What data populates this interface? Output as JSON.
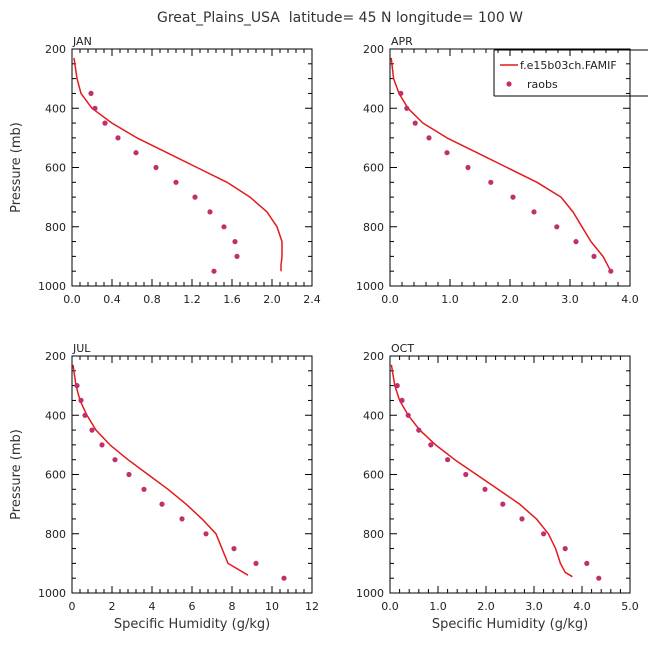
{
  "figure": {
    "title": "Great_Plains_USA  latitude= 45 N longitude= 100 W"
  },
  "colors": {
    "model_line": "#e31a1c",
    "obs_marker": "#c0306a",
    "axis": "#000000"
  },
  "legend": {
    "placement": "top-right of APR panel",
    "entries": [
      {
        "label": "f.e15b03ch.FAMIF",
        "style": "line"
      },
      {
        "label": "raobs",
        "style": "marker"
      }
    ]
  },
  "chart_data": [
    {
      "type": "line",
      "panel": "JAN",
      "xlabel": "",
      "ylabel": "Pressure (mb)",
      "xlim": [
        0,
        2.4
      ],
      "ylim": [
        1000,
        200
      ],
      "xticks": [
        "0.0",
        "0.4",
        "0.8",
        "1.2",
        "1.6",
        "2.0",
        "2.4"
      ],
      "yticks": [
        "200",
        "400",
        "600",
        "800",
        "1000"
      ],
      "series": [
        {
          "name": "f.e15b03ch.FAMIF",
          "kind": "line",
          "x": [
            0.02,
            0.05,
            0.09,
            0.2,
            0.4,
            0.65,
            0.95,
            1.25,
            1.55,
            1.78,
            1.95,
            2.05,
            2.1,
            2.1,
            2.09,
            2.09
          ],
          "y": [
            230,
            300,
            350,
            400,
            450,
            500,
            550,
            600,
            650,
            700,
            750,
            800,
            850,
            900,
            930,
            950
          ]
        },
        {
          "name": "raobs",
          "kind": "scatter",
          "x": [
            0.19,
            0.23,
            0.33,
            0.46,
            0.64,
            0.84,
            1.04,
            1.23,
            1.38,
            1.52,
            1.63,
            1.65,
            1.42
          ],
          "y": [
            350,
            400,
            450,
            500,
            550,
            600,
            650,
            700,
            750,
            800,
            850,
            900,
            950
          ]
        }
      ]
    },
    {
      "type": "line",
      "panel": "APR",
      "xlabel": "",
      "ylabel": "",
      "xlim": [
        0,
        4.0
      ],
      "ylim": [
        1000,
        200
      ],
      "xticks": [
        "0.0",
        "1.0",
        "2.0",
        "3.0",
        "4.0"
      ],
      "yticks": [
        "200",
        "400",
        "600",
        "800",
        "1000"
      ],
      "series": [
        {
          "name": "f.e15b03ch.FAMIF",
          "kind": "line",
          "x": [
            0.02,
            0.06,
            0.15,
            0.3,
            0.55,
            0.95,
            1.45,
            1.95,
            2.45,
            2.85,
            3.05,
            3.2,
            3.35,
            3.55,
            3.68
          ],
          "y": [
            230,
            300,
            350,
            400,
            450,
            500,
            550,
            600,
            650,
            700,
            750,
            800,
            850,
            900,
            950
          ]
        },
        {
          "name": "raobs",
          "kind": "scatter",
          "x": [
            0.18,
            0.28,
            0.42,
            0.65,
            0.95,
            1.3,
            1.68,
            2.05,
            2.4,
            2.78,
            3.1,
            3.4,
            3.68
          ],
          "y": [
            350,
            400,
            450,
            500,
            550,
            600,
            650,
            700,
            750,
            800,
            850,
            900,
            950
          ]
        }
      ]
    },
    {
      "type": "line",
      "panel": "JUL",
      "xlabel": "Specific Humidity (g/kg)",
      "ylabel": "Pressure (mb)",
      "xlim": [
        0,
        12
      ],
      "ylim": [
        1000,
        200
      ],
      "xticks": [
        "0",
        "2",
        "4",
        "6",
        "8",
        "10",
        "12"
      ],
      "yticks": [
        "200",
        "400",
        "600",
        "800",
        "1000"
      ],
      "series": [
        {
          "name": "f.e15b03ch.FAMIF",
          "kind": "line",
          "x": [
            0.05,
            0.2,
            0.4,
            0.75,
            1.2,
            1.9,
            2.8,
            3.8,
            4.8,
            5.7,
            6.5,
            7.2,
            7.8,
            8.8
          ],
          "y": [
            230,
            300,
            350,
            400,
            450,
            500,
            550,
            600,
            650,
            700,
            750,
            800,
            900,
            940
          ]
        },
        {
          "name": "raobs",
          "kind": "scatter",
          "x": [
            0.25,
            0.45,
            0.65,
            1.0,
            1.5,
            2.15,
            2.85,
            3.6,
            4.5,
            5.5,
            6.7,
            8.1,
            9.2,
            10.6
          ],
          "y": [
            300,
            350,
            400,
            450,
            500,
            550,
            600,
            650,
            700,
            750,
            800,
            850,
            900,
            950
          ]
        }
      ]
    },
    {
      "type": "line",
      "panel": "OCT",
      "xlabel": "Specific Humidity (g/kg)",
      "ylabel": "",
      "xlim": [
        0,
        5.0
      ],
      "ylim": [
        1000,
        200
      ],
      "xticks": [
        "0.0",
        "1.0",
        "2.0",
        "3.0",
        "4.0",
        "5.0"
      ],
      "yticks": [
        "200",
        "400",
        "600",
        "800",
        "1000"
      ],
      "series": [
        {
          "name": "f.e15b03ch.FAMIF",
          "kind": "line",
          "x": [
            0.03,
            0.1,
            0.2,
            0.38,
            0.62,
            0.95,
            1.35,
            1.8,
            2.25,
            2.7,
            3.05,
            3.3,
            3.45,
            3.55,
            3.65,
            3.8
          ],
          "y": [
            230,
            300,
            350,
            400,
            450,
            500,
            550,
            600,
            650,
            700,
            750,
            800,
            850,
            900,
            930,
            945
          ]
        },
        {
          "name": "raobs",
          "kind": "scatter",
          "x": [
            0.15,
            0.25,
            0.38,
            0.6,
            0.85,
            1.2,
            1.58,
            1.98,
            2.35,
            2.75,
            3.2,
            3.65,
            4.1,
            4.35
          ],
          "y": [
            300,
            350,
            400,
            450,
            500,
            550,
            600,
            650,
            700,
            750,
            800,
            850,
            900,
            950
          ]
        }
      ]
    }
  ]
}
